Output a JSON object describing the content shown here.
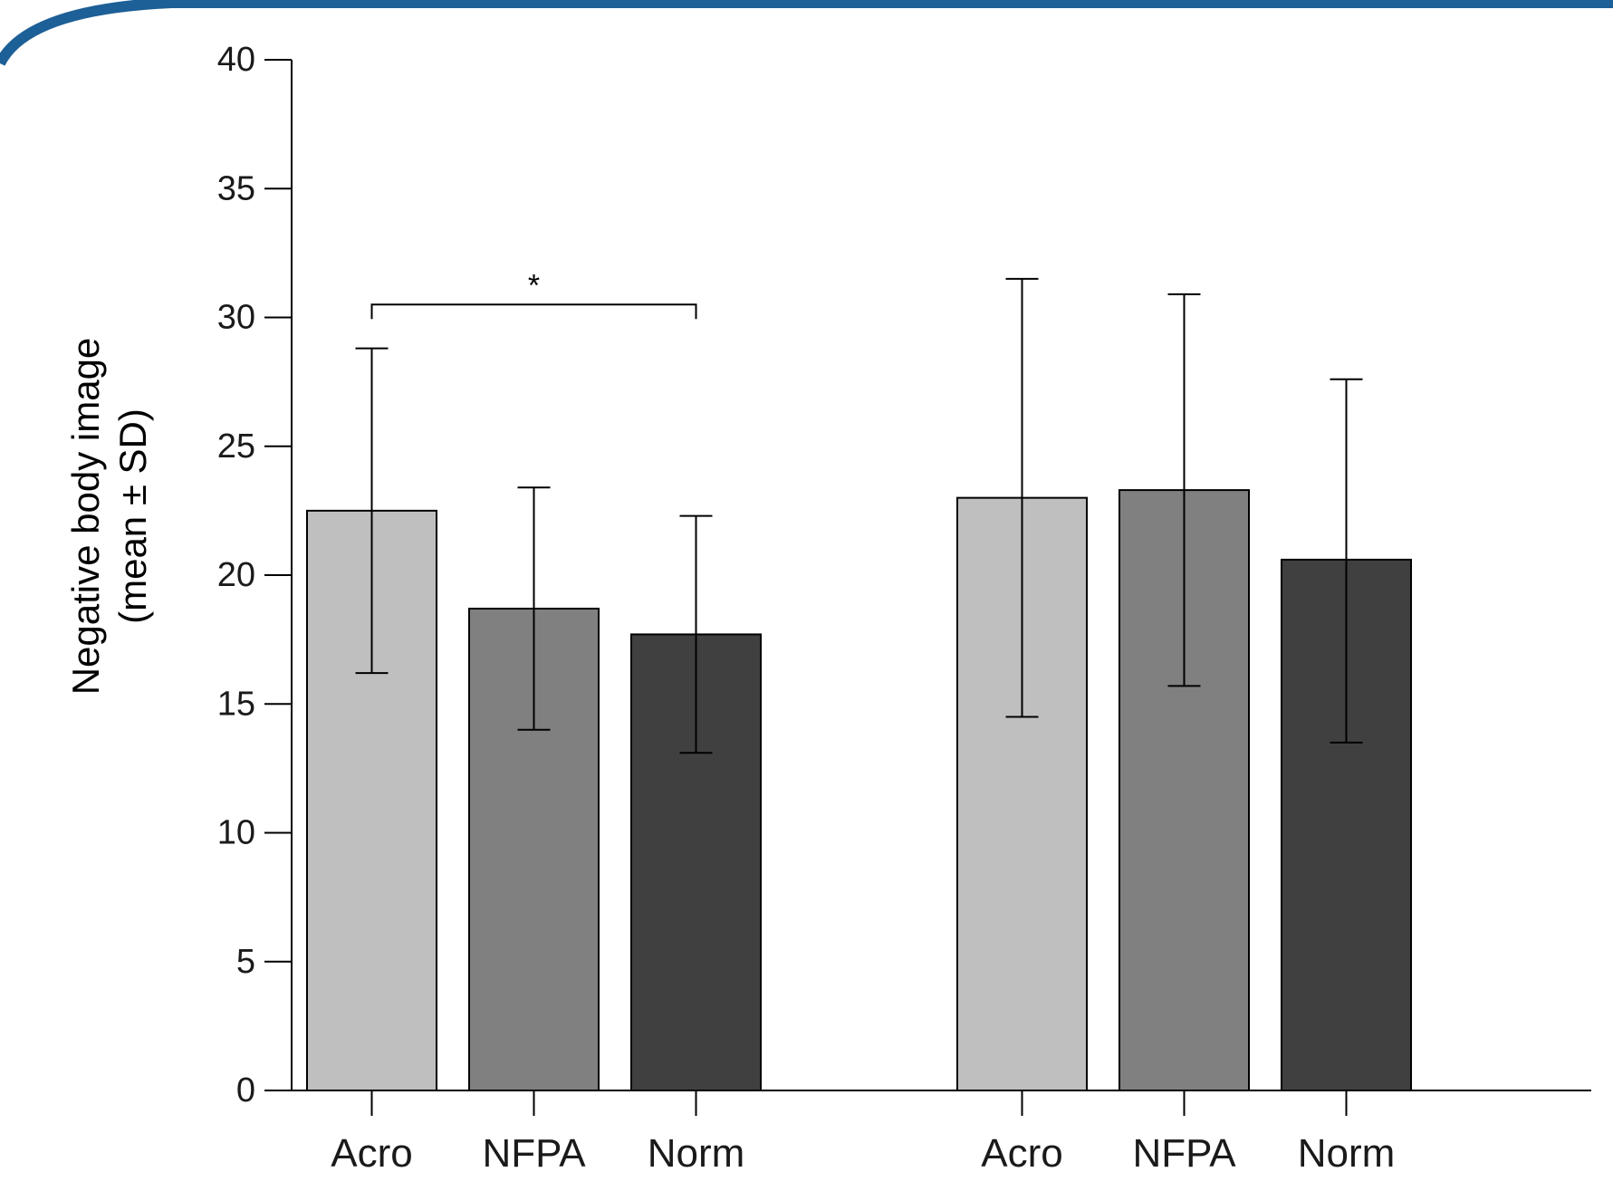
{
  "colors": {
    "frame_arc": "#1d5f97",
    "light_gray": "#bfbfbf",
    "mid_gray": "#808080",
    "dark_gray": "#404040",
    "stroke": "#000000"
  },
  "chart_data": {
    "type": "bar",
    "ylabel_line1": "Negative body image",
    "ylabel_line2": "(mean ± SD)",
    "ylim": [
      0,
      40
    ],
    "yticks": [
      0,
      5,
      10,
      15,
      20,
      25,
      30,
      35,
      40
    ],
    "groups": [
      {
        "bars": [
          {
            "label": "Acro",
            "value": 22.5,
            "sd_low": 16.2,
            "sd_high": 28.8,
            "color": "#bfbfbf"
          },
          {
            "label": "NFPA",
            "value": 18.7,
            "sd_low": 14.0,
            "sd_high": 23.4,
            "color": "#808080"
          },
          {
            "label": "Norm",
            "value": 17.7,
            "sd_low": 13.1,
            "sd_high": 22.3,
            "color": "#404040"
          }
        ]
      },
      {
        "bars": [
          {
            "label": "Acro",
            "value": 23.0,
            "sd_low": 14.5,
            "sd_high": 31.5,
            "color": "#bfbfbf"
          },
          {
            "label": "NFPA",
            "value": 23.3,
            "sd_low": 15.7,
            "sd_high": 30.9,
            "color": "#808080"
          },
          {
            "label": "Norm",
            "value": 20.6,
            "sd_low": 13.5,
            "sd_high": 27.6,
            "color": "#404040"
          }
        ]
      }
    ],
    "annotations": [
      {
        "text": "*",
        "from": "Acro",
        "to": "Norm",
        "group": 0,
        "level": 30.5
      }
    ],
    "grid": false,
    "legend": "none"
  }
}
